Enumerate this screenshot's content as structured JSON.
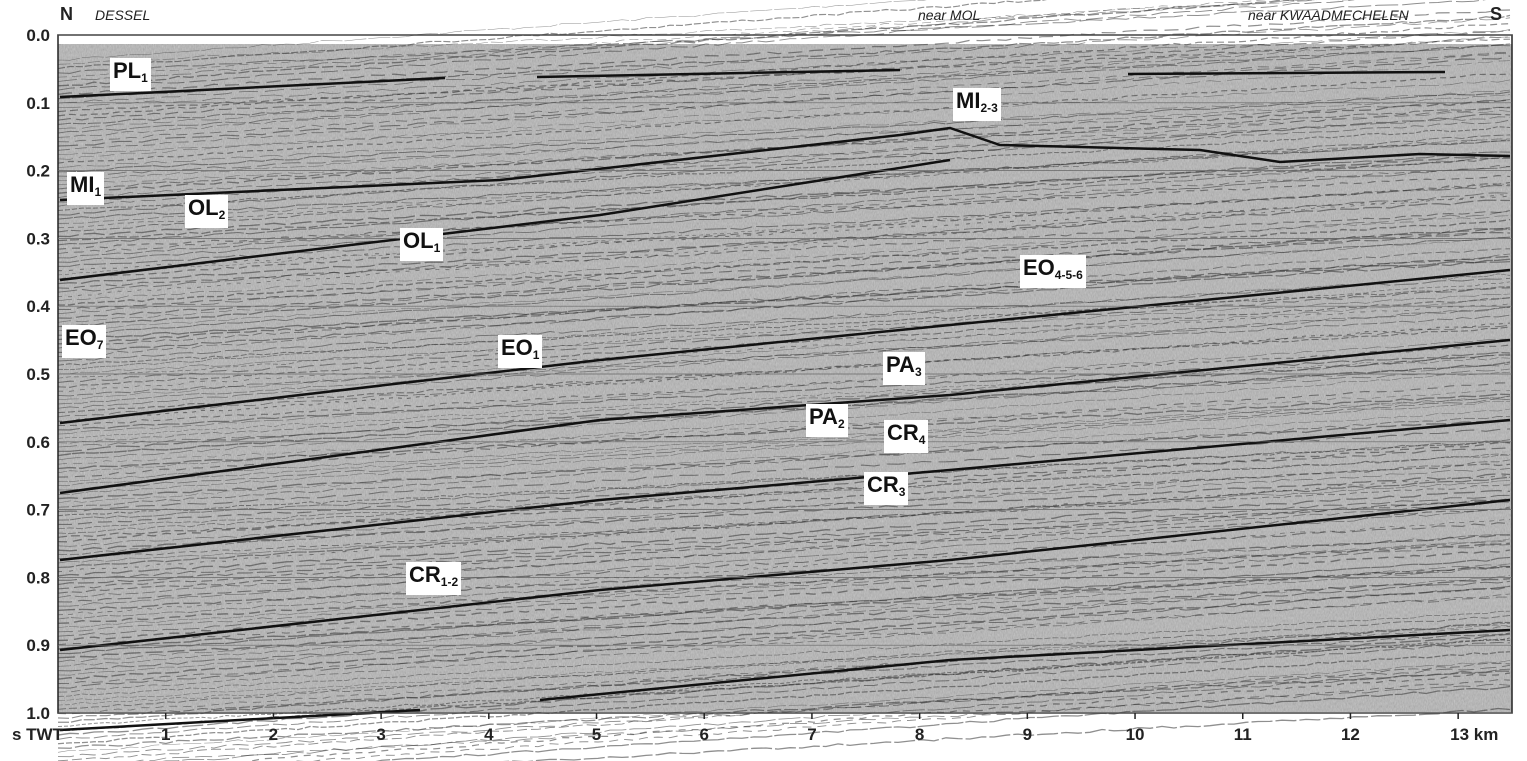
{
  "header": {
    "north": "N",
    "south": "S",
    "places": [
      "DESSEL",
      "near MOL",
      "near KWAADMECHELEN"
    ]
  },
  "axes": {
    "y": {
      "title": "s TWT",
      "lim": [
        0,
        1
      ],
      "ticks": [
        {
          "value": 0,
          "label": "0.0"
        },
        0.1,
        0.2,
        0.3,
        0.4,
        0.5,
        0.6,
        0.7,
        0.8,
        0.9,
        {
          "value": 1,
          "label": "1.0"
        }
      ]
    },
    "x": {
      "lim": [
        0,
        13.5
      ],
      "ticks": [
        1,
        2,
        3,
        4,
        5,
        6,
        7,
        8,
        9,
        10,
        11,
        12,
        {
          "value": 13,
          "label": "13 km"
        }
      ]
    }
  },
  "horizons": [
    {
      "name": "PL",
      "sub": "1"
    },
    {
      "name": "MI",
      "sub": "2-3"
    },
    {
      "name": "MI",
      "sub": "1"
    },
    {
      "name": "OL",
      "sub": "2"
    },
    {
      "name": "OL",
      "sub": "1"
    },
    {
      "name": "EO",
      "sub": "4-5-6"
    },
    {
      "name": "EO",
      "sub": "7"
    },
    {
      "name": "EO",
      "sub": "1"
    },
    {
      "name": "PA",
      "sub": "3"
    },
    {
      "name": "PA",
      "sub": "2"
    },
    {
      "name": "CR",
      "sub": "4"
    },
    {
      "name": "CR",
      "sub": "3"
    },
    {
      "name": "CR",
      "sub": "1-2"
    }
  ]
}
